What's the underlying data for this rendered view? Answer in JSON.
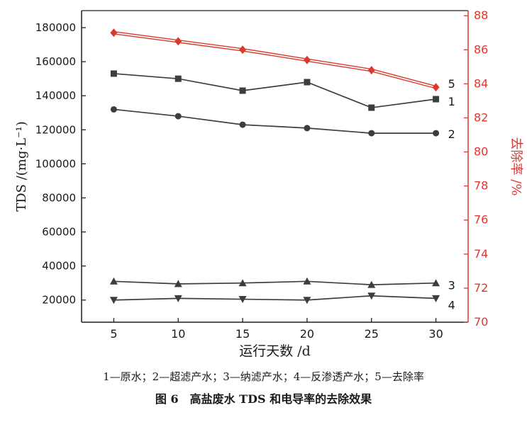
{
  "figure": {
    "caption_legend": "1—原水；2—超滤产水；3—纳滤产水；4—反渗透产水；5—去除率",
    "caption_title": "图 6　高盐废水 TDS 和电导率的去除效果"
  },
  "chart_data": {
    "type": "line",
    "x": [
      5,
      10,
      15,
      20,
      25,
      30
    ],
    "xticks": [
      5,
      10,
      15,
      20,
      25,
      30
    ],
    "xlabel": "运行天数 /d",
    "ylabel_left": "TDS /(mg·L⁻¹)",
    "ylabel_right": "去除率 /%",
    "xlim": [
      2.5,
      32.5
    ],
    "ylim_left": [
      7000,
      190000
    ],
    "ylim_right": [
      70,
      88.3
    ],
    "yticks_left": [
      20000,
      40000,
      60000,
      80000,
      100000,
      120000,
      140000,
      160000,
      180000
    ],
    "yticks_right": [
      70,
      72,
      74,
      76,
      78,
      80,
      82,
      84,
      86,
      88
    ],
    "grid": false,
    "legend_position": "below-figure-caption",
    "axis_color_left": "#1f1f1f",
    "axis_color_right": "#d93a30",
    "series": [
      {
        "name": "原水",
        "label": "1",
        "axis": "left",
        "marker": "square",
        "color": "#3d3d3d",
        "values": [
          153000,
          150000,
          143000,
          148000,
          133000,
          138000
        ]
      },
      {
        "name": "超滤产水",
        "label": "2",
        "axis": "left",
        "marker": "circle",
        "color": "#3d3d3d",
        "values": [
          132000,
          128000,
          123000,
          121000,
          118000,
          118000
        ]
      },
      {
        "name": "纳滤产水",
        "label": "3",
        "axis": "left",
        "marker": "triangle-up",
        "color": "#3d3d3d",
        "values": [
          31000,
          29500,
          30000,
          31000,
          29000,
          30000
        ]
      },
      {
        "name": "反渗透产水",
        "label": "4",
        "axis": "left",
        "marker": "triangle-down",
        "color": "#3d3d3d",
        "values": [
          20000,
          21000,
          20500,
          20000,
          22500,
          21000
        ]
      },
      {
        "name": "去除率",
        "label": "5",
        "axis": "right",
        "marker": "diamond",
        "color": "#d93a30",
        "double_line": true,
        "values": [
          87.0,
          86.5,
          86.0,
          85.4,
          84.8,
          83.8
        ]
      }
    ]
  }
}
